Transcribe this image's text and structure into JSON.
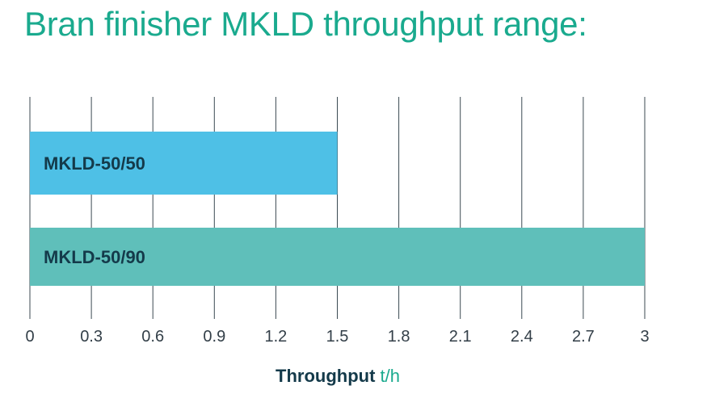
{
  "title": "Bran finisher MKLD throughput range:",
  "chart_data": {
    "type": "bar",
    "orientation": "horizontal",
    "categories": [
      "MKLD-50/50",
      "MKLD-50/90"
    ],
    "values": [
      1.5,
      3
    ],
    "colors": [
      "#4ec0e6",
      "#5fbfba"
    ],
    "xlim": [
      0,
      3
    ],
    "xticks": [
      "0",
      "0.3",
      "0.6",
      "0.9",
      "1.2",
      "1.5",
      "1.8",
      "2.1",
      "2.4",
      "2.7",
      "3"
    ],
    "xlabel": "Throughput",
    "xunit": "t/h",
    "grid": true
  }
}
